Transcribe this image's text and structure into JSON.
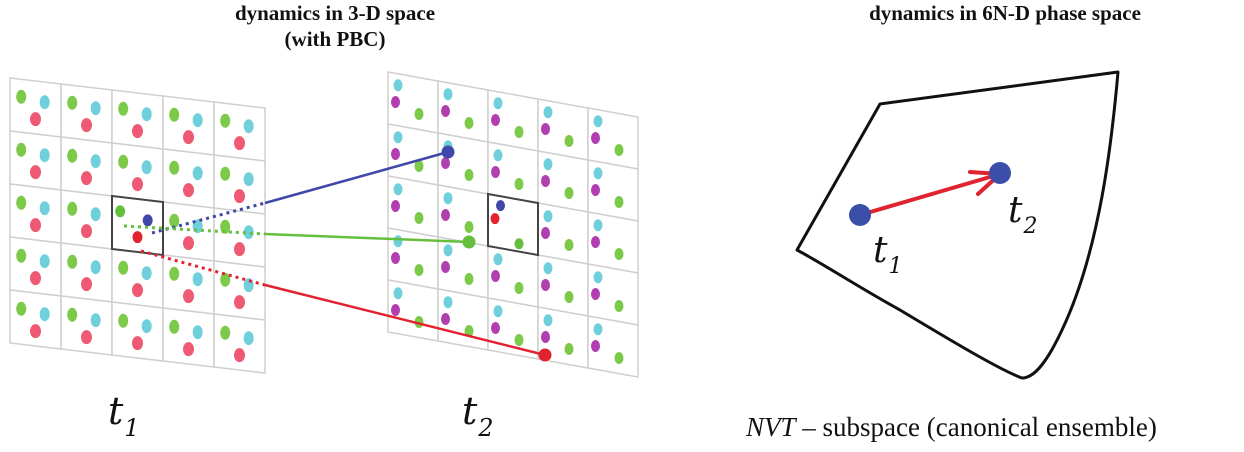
{
  "titles": {
    "left_line1": "dynamics in 3-D space",
    "left_line2": "(with PBC)",
    "right": "dynamics in 6N-D phase space"
  },
  "time_labels": {
    "t1_base": "t",
    "t1_sub": "1",
    "t2_base": "t",
    "t2_sub": "2"
  },
  "phase_space_labels": {
    "t1_base": "t",
    "t1_sub": "1",
    "t2_base": "t",
    "t2_sub": "2"
  },
  "caption": {
    "ensemble": "NVT",
    "rest": " – subspace (canonical ensemble)"
  },
  "colors": {
    "particle_green": "#7dc94a",
    "particle_cyan": "#6fd0dc",
    "particle_red": "#ee5a73",
    "particle_magenta": "#b23fb0",
    "track_blue": "#3f47a8",
    "track_green": "#63bf3c",
    "track_red": "#e0232e",
    "grid": "#cfcfcf",
    "phase_point": "#3b4ea8",
    "arrow": "#e0232e"
  }
}
